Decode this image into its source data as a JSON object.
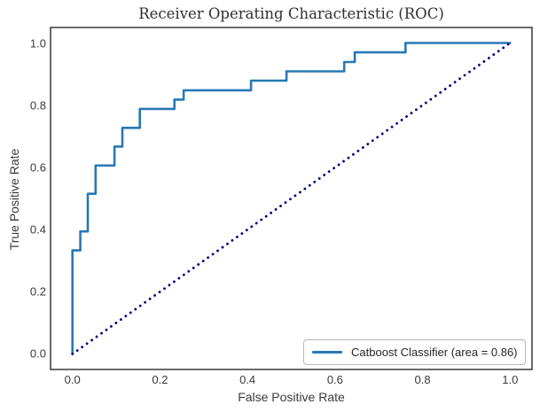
{
  "title": "Receiver Operating Characteristic (ROC)",
  "xlabel": "False Positive Rate",
  "ylabel": "True Positive Rate",
  "legend": {
    "label": "Catboost Classifier (area = 0.86)",
    "position": "lower right"
  },
  "colors": {
    "roc_line": "#2878b5",
    "diagonal": "#000080",
    "frame": "#2b2b2b",
    "text": "#3a3a3a",
    "legend_border": "#b8b8b8",
    "background": "#ffffff"
  },
  "chart_data": {
    "type": "line",
    "title": "Receiver Operating Characteristic (ROC)",
    "xlabel": "False Positive Rate",
    "ylabel": "True Positive Rate",
    "xlim": [
      -0.05,
      1.05
    ],
    "ylim": [
      -0.05,
      1.05
    ],
    "grid": false,
    "legend_position": "lower right",
    "x_tick_values": [
      0.0,
      0.2,
      0.4,
      0.6,
      0.8,
      1.0
    ],
    "x_tick_labels": [
      "0.0",
      "0.2",
      "0.4",
      "0.6",
      "0.8",
      "1.0"
    ],
    "y_tick_values": [
      0.0,
      0.2,
      0.4,
      0.6,
      0.8,
      1.0
    ],
    "y_tick_labels": [
      "0.0",
      "0.2",
      "0.4",
      "0.6",
      "0.8",
      "1.0"
    ],
    "series": [
      {
        "name": "Catboost Classifier (area = 0.86)",
        "auc": 0.86,
        "style": "solid",
        "color": "#2878b5",
        "points": [
          [
            0.0,
            0.0
          ],
          [
            0.0,
            0.333
          ],
          [
            0.018,
            0.333
          ],
          [
            0.018,
            0.394
          ],
          [
            0.035,
            0.394
          ],
          [
            0.035,
            0.515
          ],
          [
            0.053,
            0.515
          ],
          [
            0.053,
            0.606
          ],
          [
            0.096,
            0.606
          ],
          [
            0.096,
            0.667
          ],
          [
            0.114,
            0.667
          ],
          [
            0.114,
            0.727
          ],
          [
            0.154,
            0.727
          ],
          [
            0.154,
            0.788
          ],
          [
            0.233,
            0.788
          ],
          [
            0.233,
            0.818
          ],
          [
            0.254,
            0.818
          ],
          [
            0.254,
            0.848
          ],
          [
            0.408,
            0.848
          ],
          [
            0.408,
            0.879
          ],
          [
            0.489,
            0.879
          ],
          [
            0.489,
            0.909
          ],
          [
            0.621,
            0.909
          ],
          [
            0.621,
            0.939
          ],
          [
            0.645,
            0.939
          ],
          [
            0.645,
            0.97
          ],
          [
            0.761,
            0.97
          ],
          [
            0.761,
            1.0
          ],
          [
            1.0,
            1.0
          ]
        ]
      },
      {
        "name": "chance-diagonal",
        "style": "dotted",
        "color": "#000080",
        "points": [
          [
            0.0,
            0.0
          ],
          [
            1.0,
            1.0
          ]
        ]
      }
    ]
  }
}
